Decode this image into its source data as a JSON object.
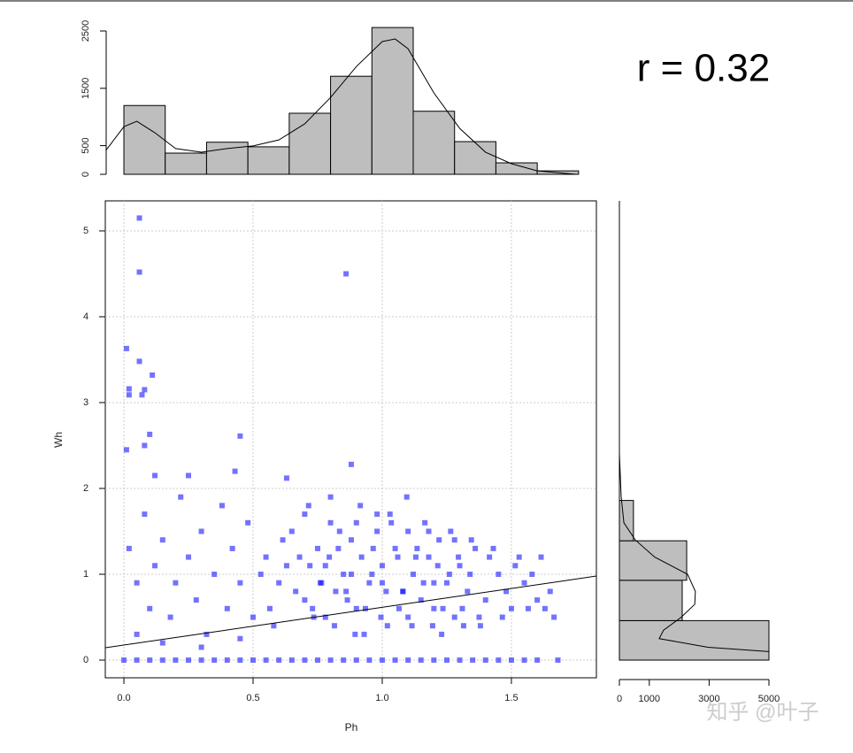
{
  "chart_data": [
    {
      "type": "histogram",
      "orientation": "vertical",
      "color": "#bebebe",
      "bins": [
        0,
        0.16,
        0.32,
        0.48,
        0.64,
        0.8,
        0.96,
        1.12,
        1.28,
        1.44,
        1.6,
        1.76
      ],
      "values": [
        1200,
        370,
        560,
        480,
        1065,
        1710,
        2560,
        1100,
        570,
        200,
        60
      ],
      "xlim": [
        -0.072,
        1.829
      ],
      "ylim": [
        0,
        2500
      ],
      "yticks": [
        0,
        500,
        1500,
        2500
      ],
      "curve": {
        "x": [
          -0.07,
          0,
          0.05,
          0.12,
          0.2,
          0.3,
          0.4,
          0.5,
          0.6,
          0.7,
          0.8,
          0.9,
          1.0,
          1.05,
          1.1,
          1.2,
          1.3,
          1.4,
          1.5,
          1.6,
          1.75
        ],
        "values": [
          415,
          830,
          925,
          725,
          450,
          385,
          450,
          495,
          600,
          880,
          1340,
          1880,
          2315,
          2360,
          2190,
          1420,
          800,
          385,
          185,
          60,
          0
        ]
      }
    },
    {
      "type": "scatter",
      "color": "#0000ff",
      "grid": true,
      "x_label": "Ph",
      "y_label": "Wh",
      "xlim": [
        -0.072,
        1.829
      ],
      "ylim": [
        -0.206,
        5.35
      ],
      "xticks": [
        {
          "value": 0,
          "label": "0.0"
        },
        0.5,
        {
          "value": 1,
          "label": "1.0"
        },
        1.5
      ],
      "yticks": [
        0,
        1,
        2,
        3,
        4,
        5
      ],
      "annotation": "r = 0.32",
      "fit_line": {
        "x": [
          -0.072,
          1.829
        ],
        "values": [
          0.144,
          0.979
        ]
      },
      "x": [
        0.06,
        0.06,
        0.86,
        0.01,
        0.06,
        0.11,
        0.02,
        0.08,
        0.02,
        0.07,
        0.1,
        0.45,
        0.08,
        0.01,
        0.88,
        0.12,
        0.25,
        0.43,
        0.63,
        0.55,
        0.6,
        0.65,
        0.7,
        0.72,
        0.75,
        0.78,
        0.8,
        0.82,
        0.85,
        0.88,
        0.9,
        0.92,
        0.95,
        0.98,
        1.0,
        1.02,
        1.05,
        1.08,
        1.1,
        1.12,
        1.15,
        1.18,
        1.2,
        1.22,
        1.25,
        1.28,
        1.3,
        1.33,
        1.36,
        1.4,
        1.45,
        1.5,
        1.55,
        1.6,
        1.65,
        0.565,
        0.615,
        0.665,
        0.715,
        0.735,
        0.765,
        0.795,
        0.815,
        0.835,
        0.865,
        0.895,
        0.915,
        0.935,
        0.965,
        0.995,
        1.015,
        1.035,
        1.065,
        1.095,
        1.115,
        1.135,
        1.165,
        1.195,
        1.215,
        1.235,
        1.265,
        1.295,
        1.315,
        1.345,
        1.375,
        1.415,
        1.465,
        1.515,
        1.565,
        1.615,
        1.665,
        0.53,
        0.58,
        0.63,
        0.68,
        0.7,
        0.73,
        0.76,
        0.78,
        0.8,
        0.83,
        0.86,
        0.88,
        0.9,
        0.93,
        0.96,
        0.98,
        1.0,
        1.03,
        1.06,
        1.08,
        1.1,
        1.13,
        1.16,
        1.18,
        1.2,
        1.23,
        1.26,
        1.28,
        1.31,
        1.34,
        1.38,
        1.43,
        1.48,
        1.53,
        1.58,
        1.63,
        0.02,
        0.05,
        0.08,
        0.1,
        0.12,
        0.15,
        0.18,
        0.2,
        0.22,
        0.25,
        0.28,
        0.3,
        0.32,
        0.35,
        0.38,
        0.4,
        0.42,
        0.45,
        0.48,
        0.5,
        0.05,
        0.15,
        0.3,
        0.45,
        0,
        0.05,
        0.1,
        0.15,
        0.2,
        0.25,
        0.3,
        0.35,
        0.4,
        0.45,
        0.5,
        0.55,
        0.6,
        0.65,
        0.7,
        0.75,
        0.8,
        0.85,
        0.9,
        0.95,
        1.0,
        1.05,
        1.1,
        1.15,
        1.2,
        1.25,
        1.3,
        1.35,
        1.4,
        1.45,
        1.5,
        1.55,
        1.6,
        1.68
      ],
      "values": [
        5.15,
        4.52,
        4.5,
        3.63,
        3.48,
        3.32,
        3.16,
        3.15,
        3.09,
        3.09,
        2.63,
        2.61,
        2.5,
        2.45,
        2.28,
        2.15,
        2.15,
        2.2,
        2.12,
        1.2,
        0.9,
        1.5,
        0.7,
        1.1,
        1.3,
        0.5,
        1.6,
        0.8,
        1.0,
        1.4,
        0.6,
        1.2,
        0.9,
        1.7,
        1.1,
        0.4,
        1.3,
        0.8,
        1.5,
        1.0,
        0.7,
        1.2,
        0.6,
        1.4,
        0.9,
        0.5,
        1.1,
        0.8,
        1.3,
        0.7,
        1.0,
        0.6,
        0.9,
        0.7,
        0.8,
        0.6,
        1.4,
        0.8,
        1.8,
        0.5,
        0.9,
        1.2,
        0.4,
        1.5,
        0.7,
        0.3,
        1.8,
        0.6,
        1.3,
        0.5,
        0.8,
        1.6,
        0.6,
        1.9,
        0.4,
        1.3,
        1.6,
        0.4,
        1.1,
        0.6,
        1.5,
        1.2,
        0.4,
        1.4,
        0.5,
        1.2,
        0.5,
        1.1,
        0.6,
        1.2,
        0.5,
        1.0,
        0.4,
        1.1,
        1.2,
        1.7,
        0.6,
        0.9,
        1.1,
        1.9,
        1.3,
        0.8,
        1.0,
        1.6,
        0.3,
        1.0,
        1.5,
        0.9,
        1.7,
        1.2,
        0.8,
        0.5,
        1.2,
        0.9,
        1.5,
        0.9,
        0.3,
        1.0,
        1.4,
        0.6,
        1.0,
        0.4,
        1.3,
        0.8,
        1.2,
        1.0,
        0.6,
        1.3,
        0.9,
        1.7,
        0.6,
        1.1,
        1.4,
        0.5,
        0.9,
        1.9,
        1.2,
        0.7,
        1.5,
        0.3,
        1.0,
        1.8,
        0.6,
        1.3,
        0.9,
        1.6,
        0.5,
        0.3,
        0.2,
        0.15,
        0.25,
        0,
        0,
        0,
        0,
        0,
        0,
        0,
        0,
        0,
        0,
        0,
        0,
        0,
        0,
        0,
        0,
        0,
        0,
        0,
        0,
        0,
        0,
        0,
        0,
        0,
        0,
        0,
        0,
        0,
        0,
        0,
        0,
        0,
        0
      ]
    },
    {
      "type": "histogram",
      "orientation": "horizontal",
      "color": "#bebebe",
      "bins": [
        0,
        0.46,
        0.93,
        1.39,
        1.86
      ],
      "values": [
        5000,
        2100,
        2250,
        470
      ],
      "xlim": [
        0,
        5000
      ],
      "xticks": [
        0,
        1000,
        3000,
        5000
      ],
      "ylim": [
        -0.206,
        5.35
      ],
      "curve": {
        "x": [
          5000,
          2960,
          1330,
          1480,
          2070,
          2520,
          2540,
          2280,
          1180,
          530,
          150,
          60,
          0
        ],
        "values": [
          0.1,
          0.15,
          0.25,
          0.35,
          0.5,
          0.65,
          0.8,
          1.0,
          1.2,
          1.4,
          1.6,
          1.9,
          2.4
        ]
      }
    }
  ],
  "watermark": "知乎 @叶子"
}
